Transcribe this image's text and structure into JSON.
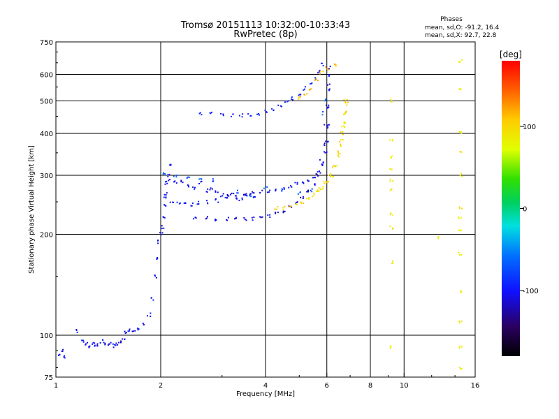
{
  "chart_data": {
    "type": "scatter",
    "title": "Tromsø 20151113 10:32:00-10:33:43",
    "subtitle": "RwPretec (8p)",
    "xlabel": "Frequency [MHz]",
    "ylabel": "Stationary phase Virtual Height [km]",
    "x_scale": "log",
    "y_scale": "log",
    "xlim": [
      1,
      16
    ],
    "ylim": [
      75,
      750
    ],
    "x_ticks": [
      1,
      2,
      4,
      6,
      8,
      10,
      16
    ],
    "x_tick_labels": [
      "1",
      "2",
      "4",
      "6",
      "8",
      "10",
      "16"
    ],
    "y_ticks": [
      75,
      100,
      200,
      300,
      400,
      500,
      600,
      750
    ],
    "y_tick_labels": [
      "75",
      "100",
      "200",
      "300",
      "400",
      "500",
      "600",
      "750"
    ],
    "x_gridlines": [
      2,
      4,
      6,
      8,
      10
    ],
    "y_gridlines": [
      100,
      200,
      300,
      400,
      500,
      600
    ],
    "grid": true,
    "phase_stats": {
      "header": "Phases",
      "line_o": "mean, sd,O: -91.2, 16.4",
      "line_x": "mean, sd,X:  92.7, 22.8"
    },
    "colorbar": {
      "label": "[deg]",
      "range": [
        -180,
        180
      ],
      "tick_labels": [
        "100",
        "0",
        "-100"
      ],
      "tick_values": [
        100,
        0,
        -100
      ],
      "colormap": "rainbow"
    },
    "traces": [
      {
        "phase_mean": -105,
        "points": [
          [
            1.03,
            88
          ],
          [
            1.04,
            90
          ],
          [
            1.05,
            86
          ],
          [
            1.15,
            103
          ],
          [
            1.2,
            96
          ],
          [
            1.22,
            94
          ],
          [
            1.25,
            92
          ],
          [
            1.28,
            95
          ],
          [
            1.3,
            93
          ],
          [
            1.33,
            94
          ],
          [
            1.36,
            96
          ],
          [
            1.4,
            94
          ],
          [
            1.43,
            95
          ],
          [
            1.46,
            93
          ],
          [
            1.5,
            94
          ],
          [
            1.53,
            96
          ],
          [
            1.56,
            98
          ],
          [
            1.58,
            102
          ],
          [
            1.62,
            104
          ],
          [
            1.67,
            103
          ],
          [
            1.72,
            104
          ],
          [
            1.8,
            108
          ],
          [
            1.85,
            115
          ],
          [
            1.9,
            128
          ],
          [
            1.94,
            150
          ],
          [
            1.96,
            170
          ],
          [
            1.98,
            190
          ],
          [
            2.0,
            200
          ],
          [
            2.02,
            210
          ],
          [
            2.04,
            225
          ],
          [
            2.05,
            245
          ],
          [
            2.06,
            265
          ],
          [
            2.08,
            285
          ],
          [
            2.1,
            300
          ],
          [
            2.12,
            320
          ]
        ]
      },
      {
        "phase_mean": -100,
        "points": [
          [
            2.05,
            255
          ],
          [
            2.15,
            250
          ],
          [
            2.25,
            248
          ],
          [
            2.35,
            246
          ],
          [
            2.45,
            245
          ],
          [
            2.55,
            248
          ],
          [
            2.7,
            250
          ],
          [
            2.9,
            252
          ],
          [
            3.1,
            255
          ],
          [
            3.3,
            258
          ],
          [
            3.5,
            262
          ],
          [
            3.7,
            265
          ],
          [
            3.9,
            268
          ],
          [
            4.1,
            270
          ],
          [
            4.3,
            272
          ],
          [
            4.5,
            275
          ],
          [
            4.7,
            278
          ],
          [
            4.9,
            282
          ],
          [
            5.1,
            286
          ],
          [
            5.3,
            290
          ],
          [
            5.5,
            296
          ],
          [
            5.7,
            306
          ],
          [
            5.85,
            320
          ],
          [
            5.95,
            350
          ],
          [
            6.0,
            380
          ],
          [
            6.02,
            420
          ],
          [
            6.04,
            480
          ],
          [
            6.05,
            540
          ],
          [
            6.06,
            600
          ]
        ]
      },
      {
        "phase_mean": -105,
        "points": [
          [
            2.1,
            290
          ],
          [
            2.2,
            285
          ],
          [
            2.3,
            288
          ],
          [
            2.4,
            280
          ],
          [
            2.5,
            275
          ],
          [
            2.6,
            285
          ],
          [
            2.7,
            270
          ],
          [
            2.8,
            275
          ],
          [
            2.9,
            268
          ],
          [
            3.0,
            262
          ],
          [
            3.1,
            260
          ],
          [
            3.2,
            265
          ],
          [
            3.3,
            258
          ],
          [
            3.4,
            255
          ],
          [
            3.5,
            260
          ],
          [
            3.6,
            262
          ],
          [
            3.7,
            258
          ]
        ]
      },
      {
        "phase_mean": -110,
        "points": [
          [
            2.5,
            225
          ],
          [
            2.7,
            224
          ],
          [
            2.9,
            222
          ],
          [
            3.1,
            222
          ],
          [
            3.3,
            222
          ],
          [
            3.5,
            222
          ],
          [
            3.7,
            223
          ],
          [
            3.9,
            224
          ],
          [
            4.1,
            226
          ],
          [
            4.3,
            230
          ],
          [
            4.5,
            235
          ],
          [
            4.7,
            242
          ],
          [
            4.9,
            250
          ],
          [
            5.1,
            258
          ],
          [
            5.3,
            268
          ],
          [
            5.5,
            282
          ],
          [
            5.65,
            300
          ],
          [
            5.8,
            330
          ],
          [
            5.9,
            370
          ],
          [
            5.97,
            420
          ],
          [
            6.02,
            480
          ],
          [
            6.06,
            560
          ],
          [
            6.08,
            630
          ]
        ]
      },
      {
        "phase_mean": -95,
        "points": [
          [
            2.6,
            460
          ],
          [
            2.8,
            458
          ],
          [
            3.0,
            455
          ],
          [
            3.2,
            452
          ],
          [
            3.4,
            452
          ],
          [
            3.6,
            453
          ],
          [
            3.8,
            458
          ],
          [
            4.0,
            465
          ],
          [
            4.2,
            472
          ],
          [
            4.4,
            482
          ],
          [
            4.6,
            495
          ],
          [
            4.8,
            510
          ],
          [
            5.0,
            525
          ],
          [
            5.2,
            545
          ],
          [
            5.4,
            565
          ],
          [
            5.55,
            585
          ],
          [
            5.7,
            610
          ],
          [
            5.85,
            640
          ]
        ]
      },
      {
        "phase_mean": 100,
        "points": [
          [
            4.3,
            240
          ],
          [
            4.5,
            240
          ],
          [
            4.7,
            242
          ],
          [
            4.9,
            245
          ],
          [
            5.1,
            248
          ],
          [
            5.3,
            255
          ],
          [
            5.5,
            262
          ],
          [
            5.7,
            272
          ],
          [
            5.9,
            285
          ],
          [
            6.1,
            300
          ],
          [
            6.3,
            320
          ],
          [
            6.45,
            345
          ],
          [
            6.55,
            370
          ],
          [
            6.65,
            400
          ],
          [
            6.72,
            430
          ],
          [
            6.78,
            460
          ],
          [
            6.82,
            490
          ]
        ]
      },
      {
        "phase_mean": 95,
        "points": [
          [
            5.6,
            270
          ],
          [
            5.8,
            275
          ],
          [
            6.0,
            285
          ],
          [
            6.2,
            300
          ],
          [
            6.35,
            320
          ],
          [
            6.5,
            350
          ],
          [
            6.6,
            380
          ],
          [
            6.7,
            420
          ],
          [
            6.75,
            460
          ],
          [
            6.8,
            500
          ]
        ]
      },
      {
        "phase_mean": 110,
        "points": [
          [
            5.0,
            510
          ],
          [
            5.2,
            520
          ],
          [
            5.4,
            545
          ],
          [
            5.6,
            580
          ],
          [
            5.8,
            610
          ],
          [
            6.0,
            625
          ],
          [
            6.3,
            640
          ]
        ]
      },
      {
        "phase_mean": 90,
        "points": [
          [
            9.2,
            500
          ],
          [
            9.2,
            380
          ],
          [
            9.2,
            340
          ],
          [
            9.2,
            310
          ],
          [
            9.2,
            290
          ],
          [
            9.2,
            270
          ],
          [
            9.2,
            230
          ],
          [
            9.2,
            210
          ],
          [
            9.2,
            165
          ],
          [
            9.2,
            92
          ]
        ]
      },
      {
        "phase_mean": 85,
        "points": [
          [
            14.5,
            660
          ],
          [
            14.5,
            540
          ],
          [
            14.5,
            400
          ],
          [
            14.5,
            350
          ],
          [
            14.5,
            300
          ],
          [
            14.5,
            240
          ],
          [
            14.5,
            225
          ],
          [
            14.5,
            205
          ],
          [
            14.5,
            175
          ],
          [
            14.5,
            135
          ],
          [
            14.5,
            110
          ],
          [
            14.5,
            92
          ],
          [
            14.5,
            80
          ],
          [
            12.5,
            195
          ]
        ]
      },
      {
        "phase_mean": -70,
        "points": [
          [
            2.05,
            305
          ],
          [
            2.2,
            300
          ],
          [
            2.4,
            295
          ],
          [
            2.6,
            292
          ],
          [
            2.8,
            290
          ],
          [
            3.3,
            268
          ],
          [
            3.6,
            260
          ],
          [
            4.0,
            275
          ],
          [
            4.5,
            270
          ],
          [
            5.0,
            265
          ],
          [
            5.4,
            270
          ],
          [
            5.8,
            460
          ],
          [
            5.9,
            500
          ]
        ]
      }
    ]
  }
}
